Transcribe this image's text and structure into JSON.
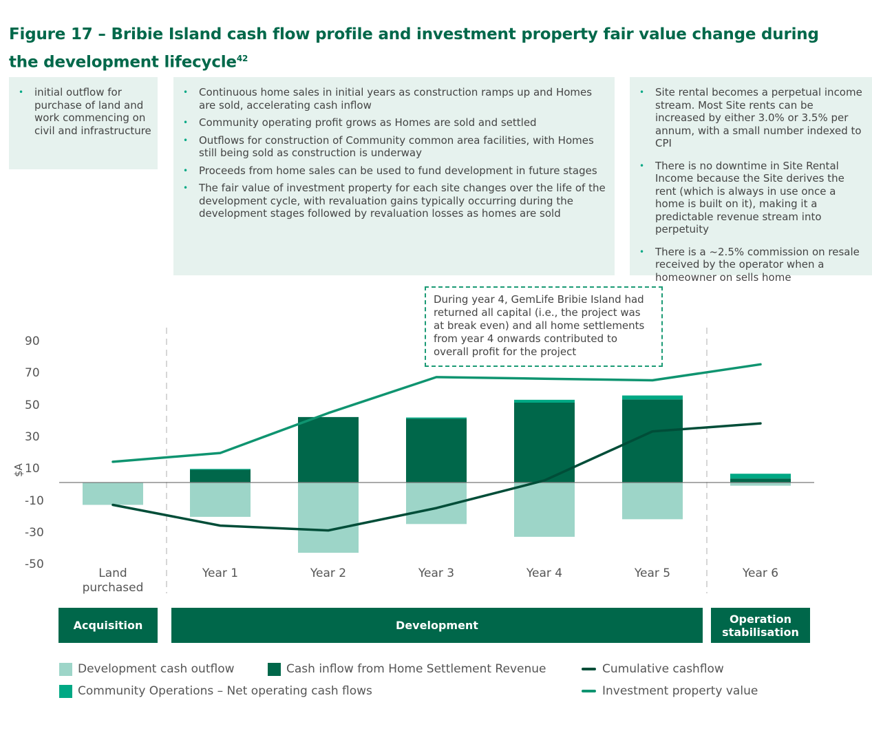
{
  "title": "Figure 17 – Bribie Island cash flow profile and investment property fair value change during the development lifecycle",
  "title_footnote": "42",
  "boxes": {
    "acquisition": [
      "initial outflow for purchase of land and work commencing on civil and infrastructure"
    ],
    "development": [
      "Continuous home sales in initial years as construction ramps up and Homes are sold, accelerating cash inflow",
      "Community operating profit grows as Homes are sold and settled",
      "Outflows for construction of Community common area facilities, with Homes still being sold as construction is underway",
      "Proceeds from home sales can be used to fund development in future stages",
      "The fair value of investment property for each site changes over the life of the development cycle, with revaluation gains typically occurring during the development stages followed by revaluation losses as homes are sold"
    ],
    "operation": [
      "Site rental becomes a perpetual income stream. Most Site rents can be increased by either 3.0% or 3.5% per annum, with a small number indexed to CPI",
      "There is no downtime in Site Rental Income because the Site derives the rent (which is always in use once a home is built on it), making it a predictable revenue stream into perpetuity",
      "There is a ~2.5% commission on resale received by the operator when a homeowner on sells home"
    ]
  },
  "callout": "During year 4, GemLife Bribie Island had returned all capital (i.e., the project was at break even) and all home settlements from year 4 onwards contributed to overall profit for the project",
  "phases": [
    "Acquisition",
    "Development",
    "Operation stabilisation"
  ],
  "colors": {
    "outflow": "#9dd5c8",
    "inflow": "#00674a",
    "community": "#00a884",
    "cumulative": "#004d38",
    "investment": "#0f9470",
    "accent": "#00684a"
  },
  "chart_data": {
    "type": "bar",
    "title": "",
    "xlabel": "",
    "ylabel": "$A",
    "ylim": [
      -50,
      90
    ],
    "yticks": [
      90,
      70,
      50,
      30,
      10,
      -10,
      -30,
      -50
    ],
    "categories": [
      "Land purchased",
      "Year 1",
      "Year 2",
      "Year 3",
      "Year 4",
      "Year 5",
      "Year 6"
    ],
    "series": [
      {
        "name": "Development cash outflow",
        "kind": "bar",
        "values": [
          -14,
          -21.5,
          -44,
          -26,
          -34,
          -23,
          -2
        ]
      },
      {
        "name": "Cash inflow from Home Settlement Revenue",
        "kind": "bar",
        "values": [
          0,
          8,
          41,
          40,
          50,
          52,
          2.5
        ]
      },
      {
        "name": "Community Operations – Net operating cash flows",
        "kind": "bar",
        "values": [
          0,
          0.5,
          0,
          0.7,
          1.8,
          2.5,
          3
        ]
      },
      {
        "name": "Cumulative cashflow",
        "kind": "line",
        "values": [
          -14,
          -27,
          -30,
          -16,
          1.3,
          32,
          37
        ]
      },
      {
        "name": "Investment property value",
        "kind": "line",
        "values": [
          13,
          18.5,
          43.5,
          66,
          65,
          64,
          74
        ]
      }
    ],
    "legend": "bottom",
    "grid": false
  }
}
